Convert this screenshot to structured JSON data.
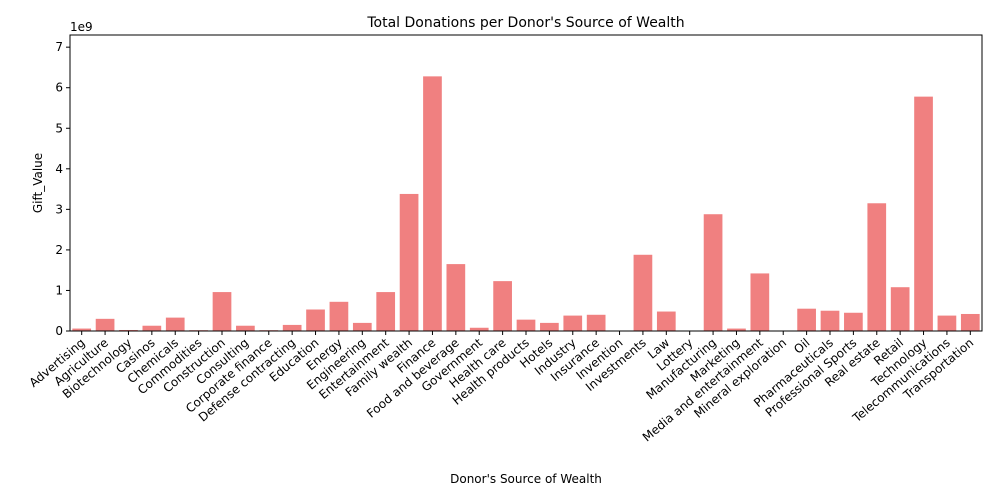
{
  "chart_data": {
    "type": "bar",
    "title": "Total Donations per Donor's Source of Wealth",
    "xlabel": "Donor's Source of Wealth",
    "ylabel": "Gift_Value",
    "offset_label": "1e9",
    "ylim": [
      0,
      7300000000
    ],
    "yticks": [
      0,
      1000000000,
      2000000000,
      3000000000,
      4000000000,
      5000000000,
      6000000000,
      7000000000
    ],
    "ytick_labels": [
      "0",
      "1",
      "2",
      "3",
      "4",
      "5",
      "6",
      "7"
    ],
    "bar_color": "#f08080",
    "grid": false,
    "categories": [
      "Advertising",
      "Agriculture",
      "Biotechnology",
      "Casinos",
      "Chemicals",
      "Commodities",
      "Construction",
      "Consulting",
      "Corporate finance",
      "Defense contracting",
      "Education",
      "Energy",
      "Engineering",
      "Entertainment",
      "Family wealth",
      "Finance",
      "Food and beverage",
      "Government",
      "Health care",
      "Health products",
      "Hotels",
      "Industry",
      "Insurance",
      "Invention",
      "Investments",
      "Law",
      "Lottery",
      "Manufacturing",
      "Marketing",
      "Media and entertainment",
      "Mineral exploration",
      "Oil",
      "Pharmaceuticals",
      "Professional Sports",
      "Real estate",
      "Retail",
      "Technology",
      "Telecommunications",
      "Transportation"
    ],
    "values": [
      60000000,
      300000000,
      25000000,
      130000000,
      330000000,
      20000000,
      960000000,
      130000000,
      20000000,
      150000000,
      530000000,
      720000000,
      200000000,
      960000000,
      3380000000,
      6280000000,
      1650000000,
      80000000,
      1230000000,
      280000000,
      200000000,
      380000000,
      400000000,
      0,
      1880000000,
      480000000,
      0,
      2880000000,
      60000000,
      1420000000,
      0,
      550000000,
      500000000,
      450000000,
      3150000000,
      1080000000,
      5780000000,
      380000000,
      420000000
    ]
  }
}
